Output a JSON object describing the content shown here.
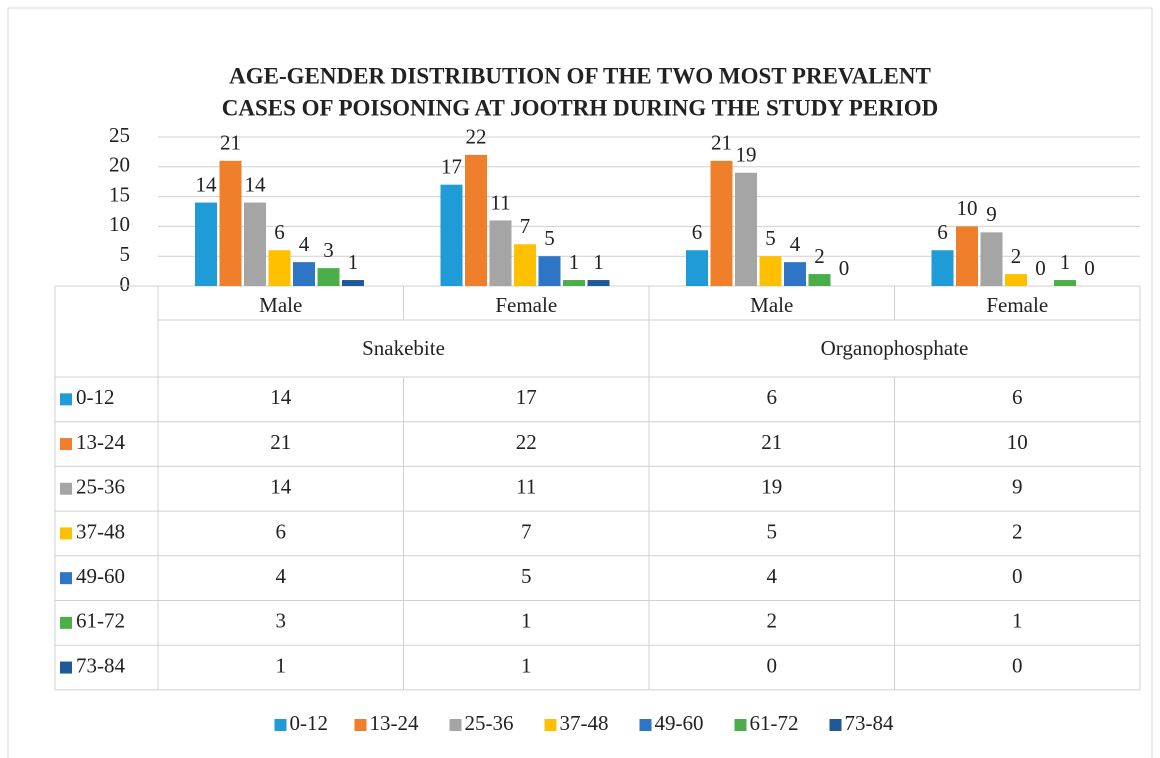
{
  "chart_data": {
    "type": "bar",
    "title": "AGE-GENDER DISTRIBUTION OF THE TWO MOST PREVALENT",
    "subtitle": "CASES OF POISONING AT JOOTRH DURING THE STUDY PERIOD",
    "categories": [
      "Male",
      "Female",
      "Male",
      "Female"
    ],
    "category_groups": [
      "Snakebite",
      "Organophosphate"
    ],
    "series": [
      {
        "name": "0-12",
        "color": "#1f9bd7",
        "values": [
          14,
          17,
          6,
          6
        ]
      },
      {
        "name": "13-24",
        "color": "#f07f2b",
        "values": [
          21,
          22,
          21,
          10
        ]
      },
      {
        "name": "25-36",
        "color": "#a5a5a5",
        "values": [
          14,
          11,
          19,
          9
        ]
      },
      {
        "name": "37-48",
        "color": "#ffc000",
        "values": [
          6,
          7,
          5,
          2
        ]
      },
      {
        "name": "49-60",
        "color": "#2e75c6",
        "values": [
          4,
          5,
          4,
          0
        ]
      },
      {
        "name": "61-72",
        "color": "#4cae48",
        "values": [
          3,
          1,
          2,
          1
        ]
      },
      {
        "name": "73-84",
        "color": "#1f5a96",
        "values": [
          1,
          1,
          0,
          0
        ]
      }
    ],
    "ylim": [
      0,
      25
    ],
    "yticks": [
      0,
      5,
      10,
      15,
      20,
      25
    ],
    "grid": true,
    "legend": "bottom"
  }
}
